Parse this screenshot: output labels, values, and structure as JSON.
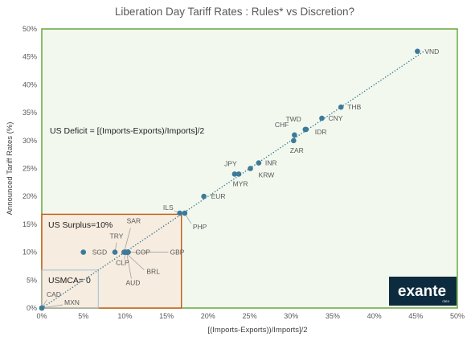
{
  "chart_data": {
    "type": "scatter",
    "title": "Liberation Day Tariff Rates : Rules* vs Discretion?",
    "xlabel": "[(Imports-Exports))/Imports]/2",
    "ylabel": "Announced Tariff Rates (%)",
    "xlim": [
      0,
      50
    ],
    "ylim": [
      0,
      50
    ],
    "x_ticks": [
      "0%",
      "5%",
      "10%",
      "15%",
      "20%",
      "25%",
      "30%",
      "35%",
      "40%",
      "45%",
      "50%"
    ],
    "y_ticks": [
      "0%",
      "5%",
      "10%",
      "15%",
      "20%",
      "25%",
      "30%",
      "35%",
      "40%",
      "45%",
      "50%"
    ],
    "grid": false,
    "colors": {
      "points": "#3d7a99",
      "trendline": "#2f6f8f",
      "deficit_region_border": "#70ad47",
      "deficit_region_fill": "#f2f8ee",
      "surplus_region_border": "#c55a11",
      "surplus_region_fill": "#f6ecdf",
      "usmca_region_border": "#9dc3d6",
      "logo_bg": "#0d2b3e"
    },
    "points": [
      {
        "label": "VND",
        "x": 45.2,
        "y": 46
      },
      {
        "label": "THB",
        "x": 36.0,
        "y": 36
      },
      {
        "label": "CNY",
        "x": 33.7,
        "y": 34
      },
      {
        "label": "TWD",
        "x": 31.8,
        "y": 32
      },
      {
        "label": "IDR",
        "x": 31.7,
        "y": 32
      },
      {
        "label": "CHF",
        "x": 30.4,
        "y": 31
      },
      {
        "label": "ZAR",
        "x": 30.3,
        "y": 30
      },
      {
        "label": "INR",
        "x": 26.1,
        "y": 26
      },
      {
        "label": "KRW",
        "x": 25.1,
        "y": 25
      },
      {
        "label": "JPY",
        "x": 23.2,
        "y": 24
      },
      {
        "label": "MYR",
        "x": 23.7,
        "y": 24
      },
      {
        "label": "EUR",
        "x": 19.5,
        "y": 20
      },
      {
        "label": "ILS",
        "x": 16.6,
        "y": 17
      },
      {
        "label": "PHP",
        "x": 17.2,
        "y": 17
      },
      {
        "label": "SGD",
        "x": 5.0,
        "y": 10
      },
      {
        "label": "TRY",
        "x": 8.8,
        "y": 10
      },
      {
        "label": "SAR",
        "x": 9.9,
        "y": 10
      },
      {
        "label": "CLP",
        "x": 10.1,
        "y": 10
      },
      {
        "label": "COP",
        "x": 10.3,
        "y": 10
      },
      {
        "label": "GBP",
        "x": 10.4,
        "y": 10
      },
      {
        "label": "AUD",
        "x": 10.2,
        "y": 10
      },
      {
        "label": "BRL",
        "x": 10.0,
        "y": 10
      },
      {
        "label": "CAD",
        "x": 0.0,
        "y": 0
      },
      {
        "label": "MXN",
        "x": 0.0,
        "y": 0
      }
    ],
    "trendline": {
      "x": [
        0,
        46
      ],
      "y": [
        0,
        46
      ]
    },
    "regions": [
      {
        "name": "deficit",
        "x": [
          0,
          50
        ],
        "y": [
          0,
          50
        ]
      },
      {
        "name": "surplus",
        "x": [
          0,
          16.8
        ],
        "y": [
          0,
          16.8
        ]
      },
      {
        "name": "usmca",
        "x": [
          0,
          6.8
        ],
        "y": [
          0,
          6.8
        ]
      }
    ],
    "annotations": {
      "deficit": "US Deficit = [(Imports-Exports)/Imports]/2",
      "surplus": "US Surplus=10%",
      "usmca": "USMCA= 0"
    }
  },
  "logo": {
    "name": "exante",
    "sub": "data"
  }
}
